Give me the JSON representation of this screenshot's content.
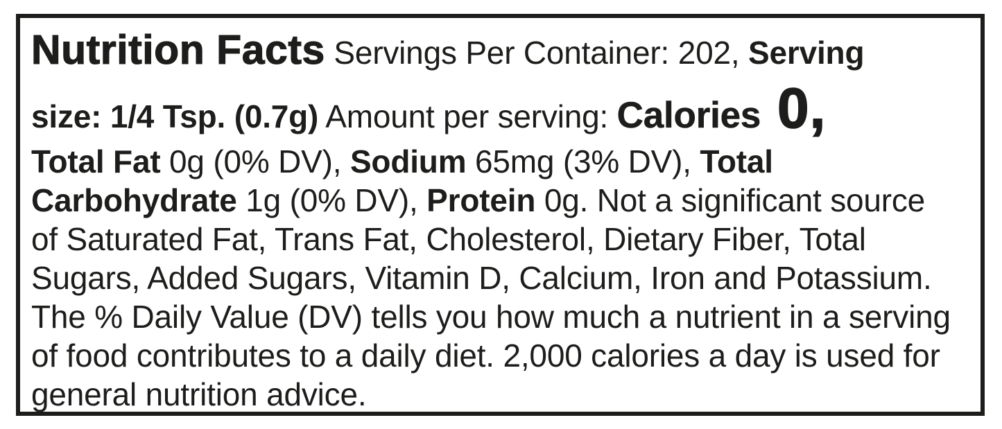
{
  "nutrition_facts": {
    "title": "Nutrition Facts",
    "servings_per_container": "202",
    "serving_size": "1/4 Tsp. (0.7g)",
    "calories": "0",
    "total_fat": "0g (0% DV)",
    "sodium": "65mg (3% DV)",
    "total_carbohydrate": "1g (0% DV)",
    "protein": "0g",
    "not_significant_source_of": "Saturated Fat, Trans Fat, Cholesterol, Dietary Fiber, Total Sugars, Added Sugars, Vitamin D, Calcium, Iron and Potassium",
    "footnote": "The % Daily Value (DV) tells you how much a nutrient in a serving of food contributes to a daily diet. 2,000 calories a day is used for general nutrition advice.",
    "colors": {
      "text": "#1d1d1b",
      "border": "#1d1d1b",
      "background": "#ffffff"
    }
  },
  "display_lines": [
    {
      "runs": [
        {
          "text": "Nutrition Facts"
        },
        {
          "text": " Servings Per Container: 202, "
        },
        {
          "text": "Serving"
        }
      ]
    },
    {
      "runs": [
        {
          "text": "size: 1/4 Tsp. (0.7g)"
        },
        {
          "text": " Amount per serving: "
        },
        {
          "text": "Calories"
        },
        {
          "text": " 0,"
        }
      ]
    },
    {
      "runs": [
        {
          "text": "Total Fat"
        },
        {
          "text": " 0g (0% DV), "
        },
        {
          "text": "Sodium"
        },
        {
          "text": " 65mg (3% DV), "
        },
        {
          "text": "Total"
        }
      ]
    },
    {
      "runs": [
        {
          "text": "Carbohydrate"
        },
        {
          "text": " 1g (0% DV), "
        },
        {
          "text": "Protein"
        },
        {
          "text": " 0g. Not a significant source"
        }
      ]
    },
    {
      "runs": [
        {
          "text": "of Saturated Fat, Trans Fat, Cholesterol, Dietary Fiber, Total"
        }
      ]
    },
    {
      "runs": [
        {
          "text": "Sugars, Added Sugars, Vitamin D, Calcium, Iron and Potassium."
        }
      ]
    },
    {
      "runs": [
        {
          "text": "The % Daily Value (DV) tells you how much a nutrient in a serving"
        }
      ]
    },
    {
      "runs": [
        {
          "text": "of food contributes to a daily diet. 2,000 calories a day is used for"
        }
      ]
    },
    {
      "runs": [
        {
          "text": "general nutrition advice."
        }
      ]
    }
  ]
}
